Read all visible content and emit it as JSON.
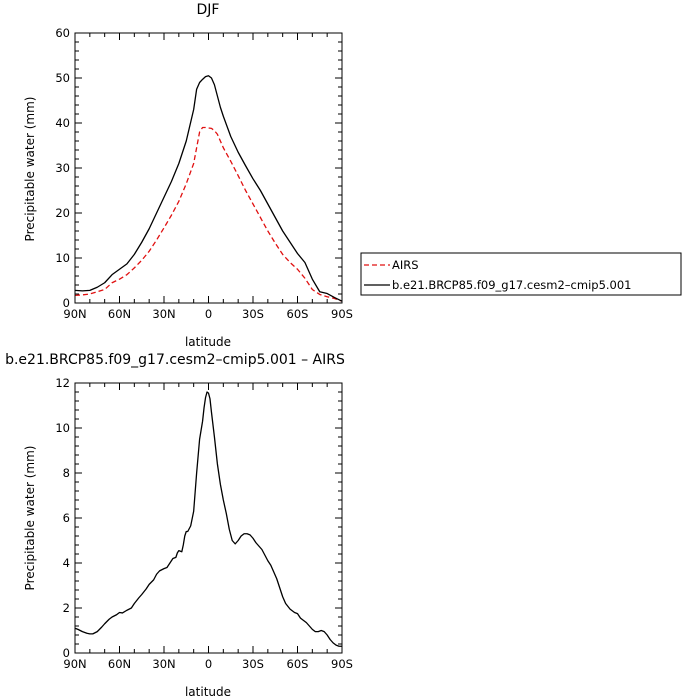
{
  "charts": [
    {
      "type": "line",
      "title": "DJF",
      "xlabel": "latitude",
      "ylabel": "Precipitable water (mm)",
      "ylim": [
        0,
        60
      ],
      "yticks": [
        "0",
        "10",
        "20",
        "30",
        "40",
        "50",
        "60"
      ],
      "xlim": [
        90,
        -90
      ],
      "xticks": [
        "90N",
        "60N",
        "30N",
        "0",
        "30S",
        "60S",
        "90S"
      ],
      "legend_position": "right",
      "series": [
        {
          "name": "AIRS",
          "color": "#e01010",
          "dash": true,
          "x": [
            90,
            85,
            80,
            75,
            70,
            65,
            60,
            55,
            50,
            45,
            40,
            35,
            30,
            25,
            20,
            15,
            10,
            8,
            6,
            4,
            2,
            0,
            -2,
            -4,
            -6,
            -8,
            -10,
            -15,
            -20,
            -25,
            -30,
            -35,
            -40,
            -45,
            -50,
            -55,
            -60,
            -65,
            -70,
            -75,
            -80,
            -85,
            -90
          ],
          "y": [
            1.7,
            1.8,
            2.0,
            2.5,
            3.0,
            4.5,
            5.3,
            6.3,
            7.8,
            9.5,
            11.5,
            14.0,
            16.7,
            19.5,
            22.6,
            26.5,
            31.0,
            34.5,
            38.0,
            39.0,
            39.0,
            38.9,
            38.8,
            38.3,
            37.5,
            36.0,
            34.5,
            31.5,
            28.3,
            25.0,
            22.0,
            19.0,
            16.0,
            13.3,
            10.8,
            9.0,
            7.5,
            5.5,
            3.0,
            1.9,
            1.4,
            1.0,
            0.4
          ]
        },
        {
          "name": "b.e21.BRCP85.f09_g17.cesm2–cmip5.001",
          "color": "#000000",
          "dash": false,
          "x": [
            90,
            85,
            80,
            75,
            70,
            65,
            60,
            55,
            50,
            45,
            40,
            35,
            30,
            25,
            20,
            15,
            10,
            8,
            6,
            4,
            2,
            0,
            -2,
            -4,
            -6,
            -8,
            -10,
            -15,
            -20,
            -25,
            -30,
            -35,
            -40,
            -45,
            -50,
            -55,
            -60,
            -65,
            -70,
            -75,
            -80,
            -85,
            -90
          ],
          "y": [
            2.8,
            2.7,
            2.8,
            3.5,
            4.5,
            6.3,
            7.5,
            8.7,
            10.8,
            13.5,
            16.5,
            20.0,
            23.5,
            27.0,
            31.0,
            36.0,
            43.0,
            47.5,
            49.0,
            49.7,
            50.3,
            50.5,
            50.0,
            48.5,
            46.0,
            43.5,
            41.5,
            37.0,
            33.5,
            30.5,
            27.6,
            25.0,
            22.0,
            19.0,
            16.0,
            13.5,
            11.0,
            9.0,
            5.3,
            2.5,
            2.1,
            1.2,
            0.4
          ]
        }
      ]
    },
    {
      "type": "line",
      "title": "b.e21.BRCP85.f09_g17.cesm2–cmip5.001 – AIRS",
      "xlabel": "latitude",
      "ylabel": "Precipitable water (mm)",
      "ylim": [
        0,
        12
      ],
      "yticks": [
        "0",
        "2",
        "4",
        "6",
        "8",
        "10",
        "12"
      ],
      "xlim": [
        90,
        -90
      ],
      "xticks": [
        "90N",
        "60N",
        "30N",
        "0",
        "30S",
        "60S",
        "90S"
      ],
      "series": [
        {
          "color": "#000000",
          "dash": false,
          "x": [
            90,
            88,
            85,
            82,
            80,
            78,
            75,
            72,
            70,
            67,
            65,
            62,
            60,
            58,
            55,
            52,
            50,
            47,
            45,
            42,
            40,
            37,
            35,
            33,
            30,
            28,
            26,
            25,
            24,
            22,
            21,
            20,
            18,
            17,
            16,
            15,
            14,
            12,
            10,
            8,
            6,
            4,
            3,
            2,
            1,
            0,
            -1,
            -2,
            -4,
            -6,
            -8,
            -10,
            -12,
            -14,
            -16,
            -18,
            -20,
            -22,
            -24,
            -26,
            -28,
            -30,
            -32,
            -34,
            -36,
            -38,
            -40,
            -42,
            -44,
            -46,
            -48,
            -50,
            -52,
            -55,
            -58,
            -60,
            -62,
            -64,
            -66,
            -68,
            -70,
            -72,
            -74,
            -76,
            -78,
            -80,
            -82,
            -84,
            -86,
            -88,
            -90
          ],
          "y": [
            1.1,
            1.05,
            0.95,
            0.88,
            0.85,
            0.85,
            0.95,
            1.15,
            1.3,
            1.5,
            1.6,
            1.7,
            1.8,
            1.78,
            1.9,
            2.0,
            2.2,
            2.45,
            2.6,
            2.85,
            3.05,
            3.25,
            3.5,
            3.65,
            3.75,
            3.8,
            4.0,
            4.1,
            4.2,
            4.25,
            4.45,
            4.55,
            4.5,
            4.8,
            5.2,
            5.4,
            5.4,
            5.65,
            6.3,
            8.0,
            9.5,
            10.3,
            10.9,
            11.35,
            11.6,
            11.55,
            11.3,
            10.7,
            9.6,
            8.4,
            7.5,
            6.8,
            6.2,
            5.5,
            5.0,
            4.85,
            5.0,
            5.2,
            5.3,
            5.3,
            5.25,
            5.1,
            4.9,
            4.75,
            4.6,
            4.35,
            4.1,
            3.9,
            3.6,
            3.3,
            2.9,
            2.5,
            2.2,
            1.95,
            1.8,
            1.75,
            1.55,
            1.45,
            1.35,
            1.2,
            1.05,
            0.95,
            0.95,
            1.0,
            0.95,
            0.8,
            0.6,
            0.45,
            0.35,
            0.3,
            0.3
          ]
        }
      ]
    }
  ]
}
